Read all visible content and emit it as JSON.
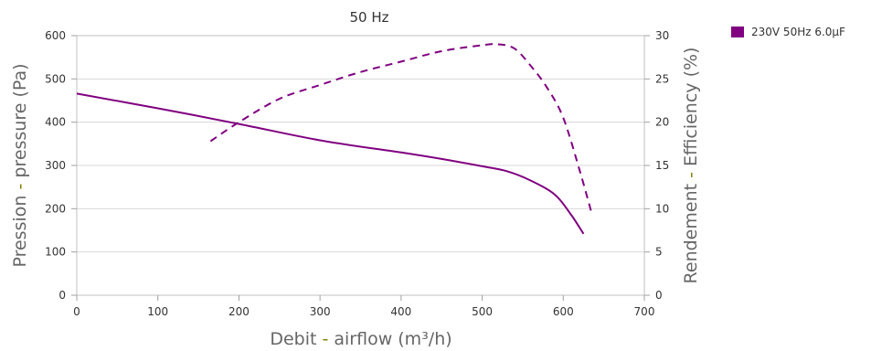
{
  "chart_data": {
    "type": "line",
    "title": "50 Hz",
    "xlabel": {
      "pre": "Debit ",
      "sep": "-",
      "post": " airflow (m³/h)"
    },
    "ylabel_left": {
      "pre": "Pression ",
      "sep": "-",
      "post": " pressure (Pa)"
    },
    "ylabel_right": {
      "pre": "Rendement ",
      "sep": "-",
      "post": " Efficiency (%)"
    },
    "xlim": [
      0,
      700
    ],
    "ylim_left": [
      0,
      600
    ],
    "ylim_right": [
      0,
      30
    ],
    "x_ticks": [
      0,
      100,
      200,
      300,
      400,
      500,
      600,
      700
    ],
    "y_ticks_left": [
      0,
      100,
      200,
      300,
      400,
      500,
      600
    ],
    "y_ticks_right": [
      0,
      5,
      10,
      15,
      20,
      25,
      30
    ],
    "grid": true,
    "legend_position": "top-right",
    "series": [
      {
        "name": "230V 50Hz 6.0µF",
        "color": "#800080",
        "axis": "left",
        "style": "solid",
        "x": [
          0,
          100,
          200,
          300,
          400,
          450,
          500,
          530,
          560,
          590,
          610,
          625
        ],
        "y": [
          466,
          432,
          396,
          358,
          330,
          315,
          298,
          287,
          265,
          232,
          185,
          142
        ]
      },
      {
        "name": "230V 50Hz 6.0µF",
        "color": "#800080",
        "axis": "right",
        "style": "dashed",
        "x": [
          165,
          200,
          250,
          300,
          350,
          400,
          450,
          500,
          520,
          540,
          560,
          580,
          600,
          620,
          635
        ],
        "y": [
          17.8,
          20,
          22.7,
          24.3,
          25.8,
          27,
          28.2,
          28.9,
          29,
          28.5,
          26.5,
          24,
          20.5,
          14.5,
          9.5
        ]
      }
    ]
  }
}
